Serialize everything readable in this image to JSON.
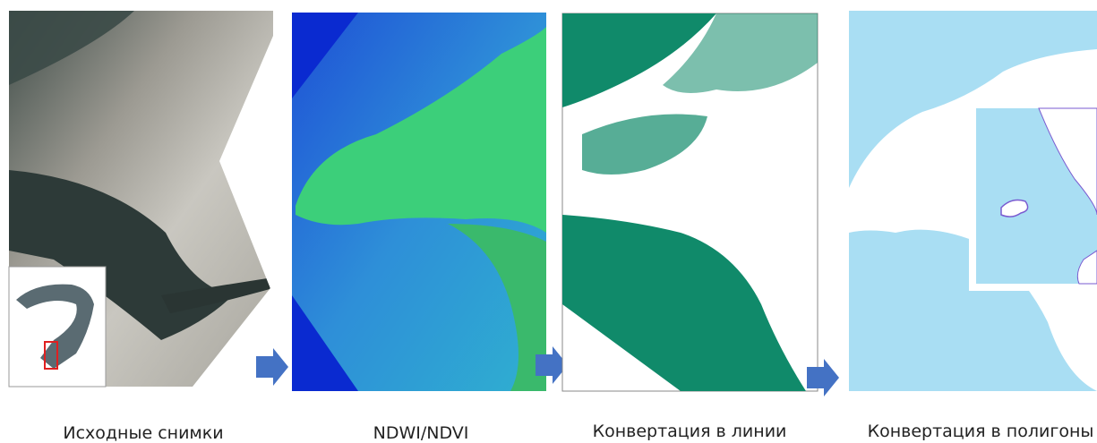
{
  "steps": [
    {
      "caption": "Исходные снимки"
    },
    {
      "caption": "NDWI/NDVI"
    },
    {
      "caption": "Конвертация в линии"
    },
    {
      "caption": "Конвертация в полигоны"
    }
  ]
}
